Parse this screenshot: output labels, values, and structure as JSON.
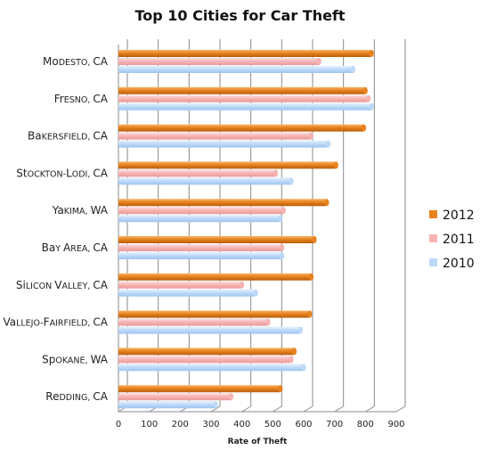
{
  "chart_data": {
    "type": "bar",
    "orientation": "horizontal",
    "title": "Top 10 Cities for Car Theft",
    "xlabel": "Rate of Theft",
    "ylabel": "",
    "xlim": [
      0,
      900
    ],
    "xticks": [
      0,
      100,
      200,
      300,
      400,
      500,
      600,
      700,
      800,
      900
    ],
    "grid": true,
    "legend_position": "right",
    "categories": [
      "Modesto, CA",
      "Fresno, CA",
      "Bakersfield, CA",
      "Stockton-Lodi, CA",
      "Yakima, WA",
      "Bay Area, CA",
      "Silicon Valley, CA",
      "Vallejo-Fairfield, CA",
      "Spokane, WA",
      "Redding, CA"
    ],
    "series": [
      {
        "name": "2012",
        "color": "#e8821e",
        "values": [
          820,
          800,
          795,
          705,
          675,
          635,
          625,
          620,
          570,
          525
        ]
      },
      {
        "name": "2011",
        "color": "#f6b3b3",
        "values": [
          650,
          810,
          625,
          510,
          535,
          530,
          400,
          485,
          560,
          365
        ]
      },
      {
        "name": "2010",
        "color": "#bcd9f7",
        "values": [
          760,
          820,
          680,
          560,
          525,
          530,
          445,
          590,
          600,
          315
        ]
      }
    ]
  }
}
